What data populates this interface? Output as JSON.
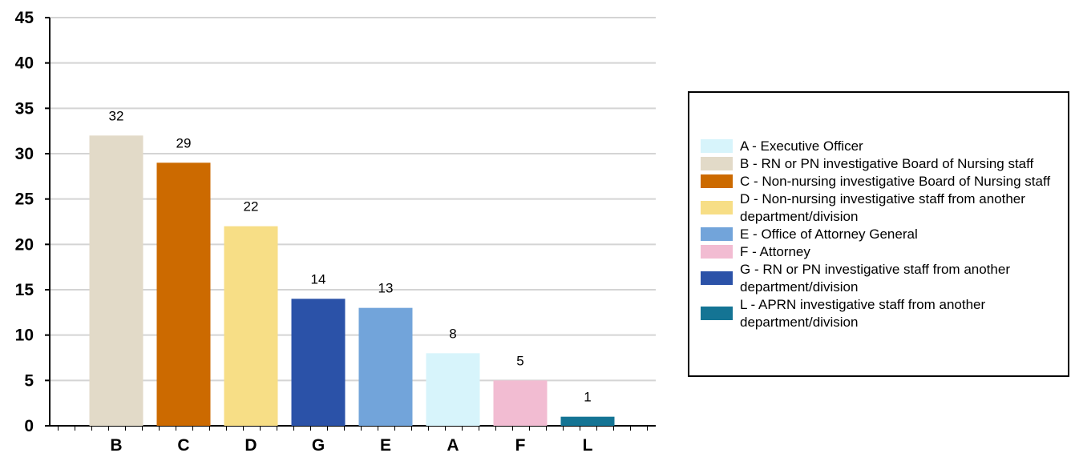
{
  "chart_data": {
    "type": "bar",
    "categories": [
      "B",
      "C",
      "D",
      "G",
      "E",
      "A",
      "F",
      "L"
    ],
    "values": [
      32,
      29,
      22,
      14,
      13,
      8,
      5,
      1
    ],
    "colors": [
      "#e2dac8",
      "#cc6a00",
      "#f7de86",
      "#2b52a8",
      "#72a4da",
      "#d7f4fb",
      "#f2bcd2",
      "#147494"
    ],
    "ylim": [
      0,
      45
    ],
    "yticks": [
      "0",
      "5",
      "10",
      "15",
      "20",
      "25",
      "30",
      "35",
      "40",
      "45"
    ],
    "grid": true,
    "legend_position": "right",
    "legend": [
      {
        "label": "A - Executive Officer",
        "color": "#d7f4fb"
      },
      {
        "label": "B - RN or PN investigative Board of Nursing staff",
        "color": "#e2dac8"
      },
      {
        "label": "C - Non-nursing investigative Board of Nursing staff",
        "color": "#cc6a00"
      },
      {
        "label": "D - Non-nursing investigative staff from another department/division",
        "color": "#f7de86"
      },
      {
        "label": "E - Office of Attorney General",
        "color": "#72a4da"
      },
      {
        "label": "F - Attorney",
        "color": "#f2bcd2"
      },
      {
        "label": "G - RN or PN investigative staff from another department/division",
        "color": "#2b52a8"
      },
      {
        "label": "L - APRN investigative staff from another department/division",
        "color": "#147494"
      }
    ]
  }
}
